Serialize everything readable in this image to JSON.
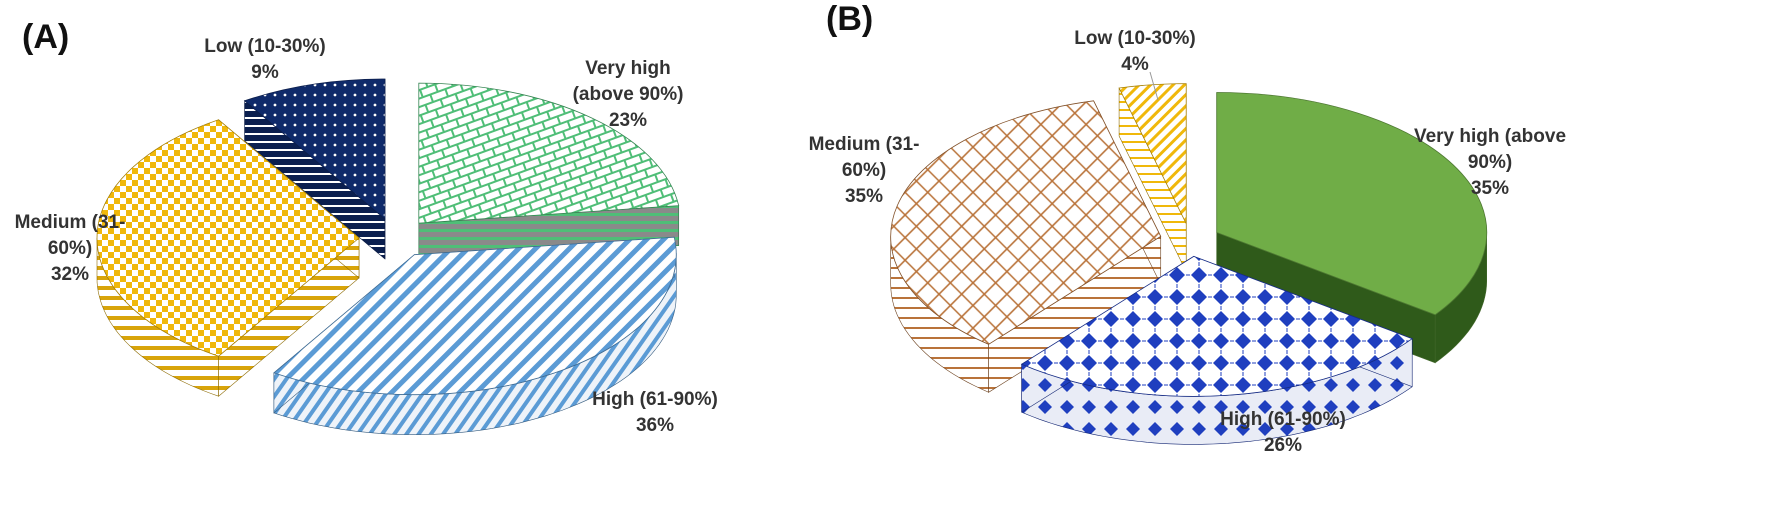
{
  "chart_data": [
    {
      "type": "pie",
      "panel_label": "(A)",
      "slices": [
        {
          "label_lines": [
            "Very high",
            "(above 90%)",
            "23%"
          ],
          "category": "Very high (above 90%)",
          "value": 23,
          "color": "#4fbe77",
          "pattern": "green-grid"
        },
        {
          "label_lines": [
            "High (61-90%)",
            "36%"
          ],
          "category": "High (61-90%)",
          "value": 36,
          "color": "#5b9bd5",
          "pattern": "blue-diagonal"
        },
        {
          "label_lines": [
            "Medium (31-",
            "60%)",
            "32%"
          ],
          "category": "Medium (31-60%)",
          "value": 32,
          "color": "#f0b80a",
          "pattern": "yellow-checker"
        },
        {
          "label_lines": [
            "Low (10-30%)",
            "9%"
          ],
          "category": "Low (10-30%)",
          "value": 9,
          "color": "#0f2a6a",
          "pattern": "navy-dots"
        }
      ],
      "legend": "none",
      "style": "3d-exploded"
    },
    {
      "type": "pie",
      "panel_label": "(B)",
      "slices": [
        {
          "label_lines": [
            "Very high (above",
            "90%)",
            "35%"
          ],
          "category": "Very high (above 90%)",
          "value": 35,
          "color": "#70ad47",
          "pattern": "solid"
        },
        {
          "label_lines": [
            "High (61-90%)",
            "26%"
          ],
          "category": "High (61-90%)",
          "value": 26,
          "color": "#1f3fbf",
          "pattern": "blue-diamonds"
        },
        {
          "label_lines": [
            "Medium (31-",
            "60%)",
            "35%"
          ],
          "category": "Medium (31-60%)",
          "value": 35,
          "color": "#b9733a",
          "pattern": "brown-grid"
        },
        {
          "label_lines": [
            "Low (10-30%)",
            "4%"
          ],
          "category": "Low (10-30%)",
          "value": 4,
          "color": "#f0b80a",
          "pattern": "yellow-diagonal"
        }
      ],
      "legend": "none",
      "style": "3d-exploded"
    }
  ]
}
